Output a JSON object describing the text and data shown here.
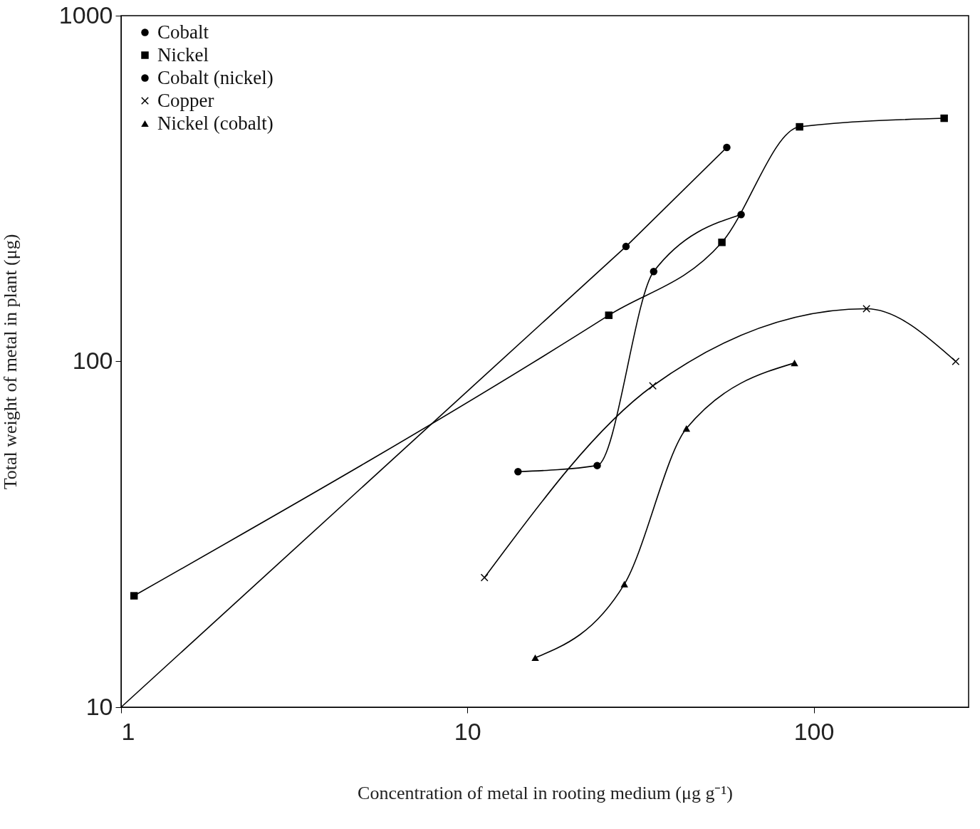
{
  "chart_data": {
    "type": "line",
    "xlabel": "Concentration of metal in rooting medium (μg g⁻¹)",
    "ylabel": "Total weight of metal in plant (μg)",
    "log": "xy",
    "xlim": [
      1,
      280
    ],
    "ylim": [
      10,
      1000
    ],
    "xticks": [
      1,
      10,
      100
    ],
    "yticks": [
      10,
      100,
      1000
    ],
    "grid": false,
    "legend": "top left",
    "series": [
      {
        "name": "Cobalt",
        "color": "#000000",
        "marker": "circle",
        "x": [
          28.7,
          56.1
        ],
        "values": [
          215,
          416
        ]
      },
      {
        "name": "Nickel",
        "color": "#000000",
        "marker": "square",
        "x": [
          1.09,
          25.6,
          54.3,
          91,
          238
        ],
        "values": [
          21,
          136,
          221,
          477,
          505
        ]
      },
      {
        "name": "Cobalt (nickel)",
        "color": "#000000",
        "marker": "circle",
        "x": [
          14,
          23.7,
          34.5,
          61.7
        ],
        "values": [
          48,
          50,
          182,
          266
        ]
      },
      {
        "name": "Copper",
        "color": "#000000",
        "marker": "cross",
        "x": [
          11.2,
          34.3,
          142,
          257
        ],
        "values": [
          23.7,
          85,
          142,
          100
        ]
      },
      {
        "name": "Nickel (cobalt)",
        "color": "#000000",
        "marker": "triangle",
        "x": [
          15.7,
          28.4,
          42.9,
          88
        ],
        "values": [
          13.9,
          22.7,
          64,
          99
        ]
      },
      {
        "type": "line",
        "color": "#000000",
        "marker": "none",
        "x": [
          1,
          28.7
        ],
        "values": [
          10,
          215
        ]
      }
    ]
  }
}
